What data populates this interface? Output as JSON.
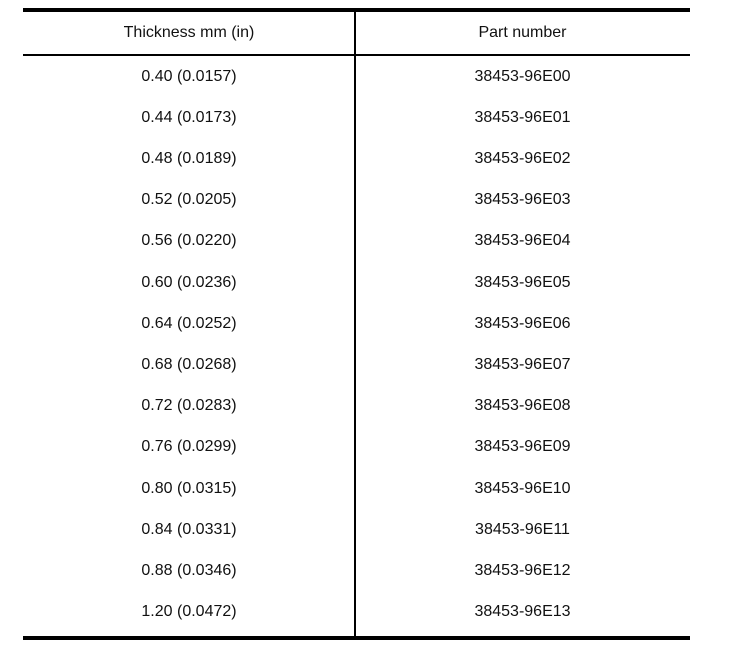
{
  "table": {
    "headers": [
      "Thickness mm (in)",
      "Part number"
    ],
    "rows": [
      [
        "0.40 (0.0157)",
        "38453-96E00"
      ],
      [
        "0.44 (0.0173)",
        "38453-96E01"
      ],
      [
        "0.48 (0.0189)",
        "38453-96E02"
      ],
      [
        "0.52 (0.0205)",
        "38453-96E03"
      ],
      [
        "0.56 (0.0220)",
        "38453-96E04"
      ],
      [
        "0.60 (0.0236)",
        "38453-96E05"
      ],
      [
        "0.64 (0.0252)",
        "38453-96E06"
      ],
      [
        "0.68 (0.0268)",
        "38453-96E07"
      ],
      [
        "0.72 (0.0283)",
        "38453-96E08"
      ],
      [
        "0.76 (0.0299)",
        "38453-96E09"
      ],
      [
        "0.80 (0.0315)",
        "38453-96E10"
      ],
      [
        "0.84 (0.0331)",
        "38453-96E11"
      ],
      [
        "0.88 (0.0346)",
        "38453-96E12"
      ],
      [
        "1.20 (0.0472)",
        "38453-96E13"
      ]
    ]
  }
}
